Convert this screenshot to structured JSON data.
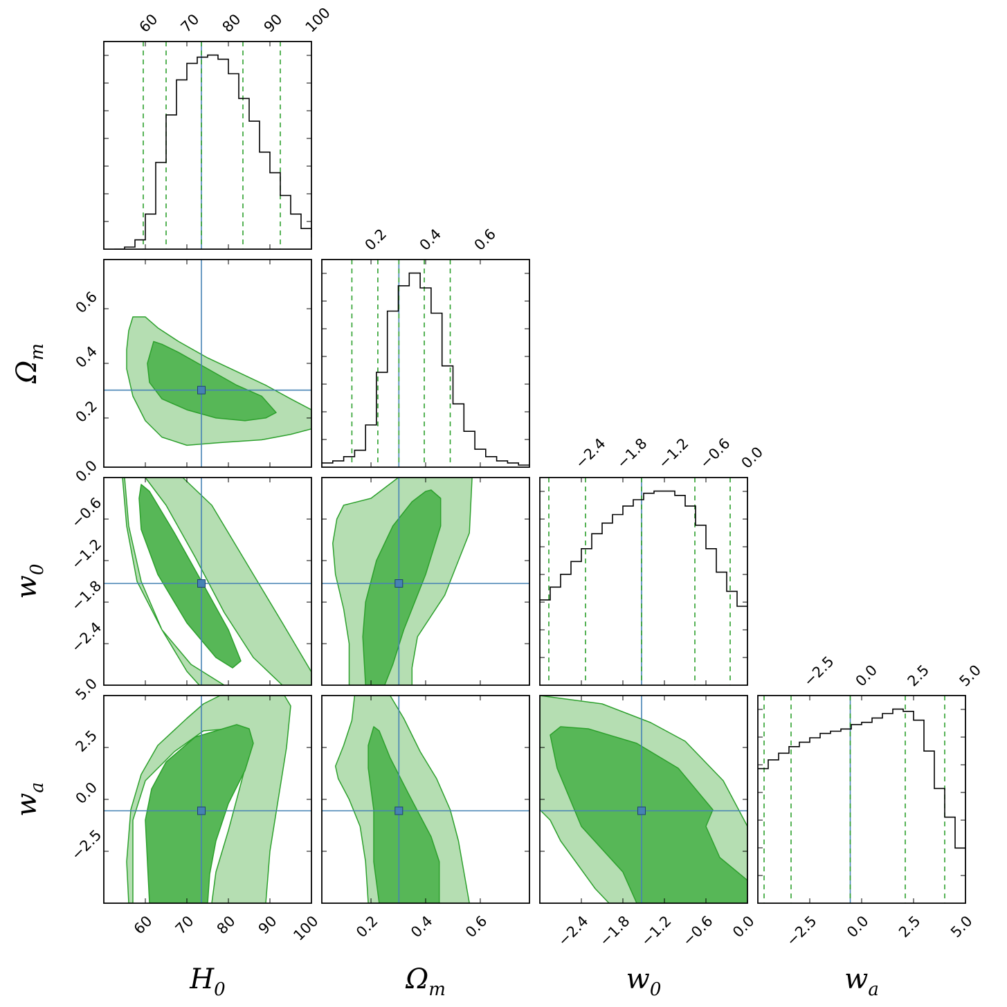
{
  "chart_data": {
    "type": "corner",
    "parameters": [
      {
        "key": "H0",
        "label_main": "H",
        "label_sub": "0",
        "range": [
          50,
          100
        ],
        "ticks": [
          60,
          70,
          80,
          90,
          100
        ],
        "tick_labels": [
          "60",
          "70",
          "80",
          "90",
          "100"
        ]
      },
      {
        "key": "Om",
        "label_main": "Ω",
        "label_sub": "m",
        "range": [
          0.02,
          0.78
        ],
        "ticks": [
          0.2,
          0.4,
          0.6
        ],
        "tick_labels": [
          "0.2",
          "0.4",
          "0.6"
        ]
      },
      {
        "key": "w0",
        "label_main": "w",
        "label_sub": "0",
        "range": [
          -3.0,
          0.0
        ],
        "ticks": [
          -2.4,
          -1.8,
          -1.2,
          -0.6,
          0.0
        ],
        "tick_labels": [
          "−2.4",
          "−1.8",
          "−1.2",
          "−0.6",
          "0.0"
        ]
      },
      {
        "key": "wa",
        "label_main": "w",
        "label_sub": "a",
        "range": [
          -5.0,
          5.0
        ],
        "ticks": [
          -2.5,
          0.0,
          2.5,
          5.0
        ],
        "tick_labels": [
          "−2.5",
          "0.0",
          "2.5",
          "5.0"
        ]
      }
    ],
    "truth": {
      "H0": 73.5,
      "Om": 0.302,
      "w0": -1.53,
      "wa": -0.55
    },
    "quantiles": {
      "H0": [
        59.5,
        65.0,
        73.5,
        83.5,
        92.5
      ],
      "Om": [
        0.13,
        0.225,
        0.302,
        0.395,
        0.49
      ],
      "w0": [
        -2.87,
        -2.34,
        -1.53,
        -0.76,
        -0.25
      ],
      "wa": [
        -4.7,
        -3.4,
        -0.55,
        2.1,
        4.0
      ]
    },
    "histograms": {
      "H0": {
        "edges_start": 52.5,
        "bin_width": 2.5,
        "values": [
          0.0,
          0.01,
          0.045,
          0.17,
          0.42,
          0.65,
          0.82,
          0.9,
          0.93,
          0.94,
          0.92,
          0.85,
          0.73,
          0.62,
          0.47,
          0.37,
          0.26,
          0.17,
          0.1,
          0.06,
          0.04,
          0.03
        ]
      },
      "Om": {
        "edges_start": 0.02,
        "bin_width": 0.04,
        "values": [
          0.02,
          0.03,
          0.05,
          0.08,
          0.2,
          0.45,
          0.74,
          0.86,
          0.92,
          0.85,
          0.73,
          0.48,
          0.3,
          0.17,
          0.085,
          0.05,
          0.03,
          0.02,
          0.01
        ]
      },
      "w0": {
        "edges_start": -3.0,
        "bin_width": 0.15,
        "values": [
          0.4,
          0.46,
          0.52,
          0.58,
          0.64,
          0.71,
          0.76,
          0.8,
          0.84,
          0.87,
          0.9,
          0.91,
          0.91,
          0.89,
          0.84,
          0.75,
          0.64,
          0.53,
          0.44,
          0.37
        ]
      },
      "wa": {
        "edges_start": -5.0,
        "bin_width": 0.5,
        "values": [
          0.61,
          0.65,
          0.68,
          0.71,
          0.73,
          0.75,
          0.77,
          0.78,
          0.79,
          0.81,
          0.82,
          0.84,
          0.86,
          0.88,
          0.87,
          0.83,
          0.69,
          0.52,
          0.39,
          0.25
        ]
      }
    },
    "contours": [
      {
        "x": "H0",
        "y": "Om",
        "outer": [
          [
            57,
            0.57
          ],
          [
            60,
            0.57
          ],
          [
            63,
            0.53
          ],
          [
            68,
            0.48
          ],
          [
            75,
            0.42
          ],
          [
            82,
            0.37
          ],
          [
            89,
            0.32
          ],
          [
            95,
            0.27
          ],
          [
            100,
            0.23
          ],
          [
            100,
            0.16
          ],
          [
            95,
            0.14
          ],
          [
            88,
            0.12
          ],
          [
            78,
            0.11
          ],
          [
            70,
            0.1
          ],
          [
            64,
            0.13
          ],
          [
            60,
            0.19
          ],
          [
            57,
            0.28
          ],
          [
            55.5,
            0.38
          ],
          [
            55.5,
            0.45
          ],
          [
            56,
            0.52
          ]
        ],
        "inner": [
          [
            62,
            0.48
          ],
          [
            64,
            0.47
          ],
          [
            68,
            0.44
          ],
          [
            75,
            0.38
          ],
          [
            82,
            0.32
          ],
          [
            88,
            0.28
          ],
          [
            91.5,
            0.22
          ],
          [
            89,
            0.2
          ],
          [
            84,
            0.19
          ],
          [
            77,
            0.2
          ],
          [
            70,
            0.23
          ],
          [
            64,
            0.27
          ],
          [
            61,
            0.33
          ],
          [
            60.5,
            0.4
          ]
        ]
      },
      {
        "x": "H0",
        "y": "w0",
        "outer": [
          [
            54.5,
            0.0
          ],
          [
            60,
            0.0
          ],
          [
            65,
            -0.4
          ],
          [
            72,
            -1.15
          ],
          [
            79,
            -1.95
          ],
          [
            86,
            -2.6
          ],
          [
            93,
            -3.0
          ],
          [
            100,
            -3.0
          ],
          [
            100,
            -2.81
          ],
          [
            93,
            -2.1
          ],
          [
            84,
            -1.2
          ],
          [
            76,
            -0.4
          ],
          [
            69,
            0.0
          ],
          [
            55,
            0.0
          ],
          [
            56,
            -0.7
          ],
          [
            59,
            -1.5
          ],
          [
            64,
            -2.2
          ],
          [
            70,
            -2.8
          ],
          [
            73,
            -3.0
          ],
          [
            79,
            -3.0
          ],
          [
            71,
            -2.7
          ],
          [
            64,
            -2.2
          ],
          [
            58,
            -1.5
          ],
          [
            55.5,
            -0.7
          ]
        ],
        "inner": [
          [
            59,
            -0.1
          ],
          [
            61,
            -0.2
          ],
          [
            67,
            -0.8
          ],
          [
            74,
            -1.55
          ],
          [
            80,
            -2.2
          ],
          [
            83,
            -2.65
          ],
          [
            81,
            -2.75
          ],
          [
            77,
            -2.6
          ],
          [
            70,
            -2.1
          ],
          [
            63,
            -1.4
          ],
          [
            59,
            -0.75
          ],
          [
            58.5,
            -0.3
          ]
        ]
      },
      {
        "x": "Om",
        "y": "w0",
        "outer": [
          [
            0.1,
            -0.4
          ],
          [
            0.2,
            -0.3
          ],
          [
            0.25,
            -0.15
          ],
          [
            0.3,
            0.0
          ],
          [
            0.57,
            0.0
          ],
          [
            0.56,
            -0.8
          ],
          [
            0.47,
            -1.7
          ],
          [
            0.37,
            -2.3
          ],
          [
            0.35,
            -2.75
          ],
          [
            0.35,
            -3.0
          ],
          [
            0.12,
            -3.0
          ],
          [
            0.12,
            -2.4
          ],
          [
            0.1,
            -1.9
          ],
          [
            0.07,
            -1.4
          ],
          [
            0.06,
            -0.95
          ],
          [
            0.075,
            -0.6
          ]
        ],
        "inner": [
          [
            0.42,
            -0.18
          ],
          [
            0.455,
            -0.3
          ],
          [
            0.455,
            -0.7
          ],
          [
            0.4,
            -1.4
          ],
          [
            0.32,
            -2.2
          ],
          [
            0.28,
            -2.7
          ],
          [
            0.25,
            -3.0
          ],
          [
            0.18,
            -3.0
          ],
          [
            0.17,
            -2.3
          ],
          [
            0.18,
            -1.8
          ],
          [
            0.22,
            -1.2
          ],
          [
            0.28,
            -0.7
          ],
          [
            0.35,
            -0.35
          ],
          [
            0.4,
            -0.2
          ]
        ]
      },
      {
        "x": "H0",
        "y": "wa",
        "outer": [
          [
            78,
            5.0
          ],
          [
            93.5,
            5.0
          ],
          [
            95,
            4.5
          ],
          [
            94,
            2.5
          ],
          [
            92,
            0.0
          ],
          [
            90,
            -2.5
          ],
          [
            89,
            -5.0
          ],
          [
            76,
            -5.0
          ],
          [
            77,
            -3.5
          ],
          [
            80,
            -1.5
          ],
          [
            84,
            1.5
          ],
          [
            80,
            3.4
          ],
          [
            74,
            3.3
          ],
          [
            67,
            2.3
          ],
          [
            60,
            0.9
          ],
          [
            57,
            -1.0
          ],
          [
            57,
            -5.0
          ],
          [
            56,
            -5.0
          ],
          [
            55.5,
            -3.0
          ],
          [
            56.5,
            -0.5
          ],
          [
            59,
            1.2
          ],
          [
            63,
            2.6
          ],
          [
            70,
            3.9
          ],
          [
            74,
            4.6
          ]
        ],
        "inner": [
          [
            60,
            -1.0
          ],
          [
            61.5,
            0.5
          ],
          [
            65,
            1.8
          ],
          [
            72,
            3.0
          ],
          [
            82,
            3.6
          ],
          [
            85,
            3.4
          ],
          [
            86,
            2.7
          ],
          [
            84,
            1.4
          ],
          [
            80,
            -0.2
          ],
          [
            77,
            -2.0
          ],
          [
            75.5,
            -3.6
          ],
          [
            75,
            -5.0
          ],
          [
            61,
            -5.0
          ],
          [
            60.5,
            -3.0
          ]
        ]
      },
      {
        "x": "Om",
        "y": "wa",
        "outer": [
          [
            0.14,
            5.0
          ],
          [
            0.27,
            5.0
          ],
          [
            0.32,
            3.9
          ],
          [
            0.38,
            2.3
          ],
          [
            0.44,
            1.0
          ],
          [
            0.49,
            -0.5
          ],
          [
            0.52,
            -2.0
          ],
          [
            0.54,
            -3.5
          ],
          [
            0.56,
            -5.0
          ],
          [
            0.19,
            -5.0
          ],
          [
            0.18,
            -3.0
          ],
          [
            0.16,
            -1.3
          ],
          [
            0.12,
            0.0
          ],
          [
            0.08,
            1.0
          ],
          [
            0.07,
            1.6
          ],
          [
            0.1,
            2.6
          ],
          [
            0.13,
            3.8
          ]
        ],
        "inner": [
          [
            0.21,
            3.5
          ],
          [
            0.23,
            3.3
          ],
          [
            0.27,
            2.0
          ],
          [
            0.34,
            0.2
          ],
          [
            0.42,
            -1.8
          ],
          [
            0.45,
            -3.0
          ],
          [
            0.45,
            -5.0
          ],
          [
            0.23,
            -5.0
          ],
          [
            0.21,
            -3.0
          ],
          [
            0.21,
            -0.5
          ],
          [
            0.19,
            1.5
          ],
          [
            0.19,
            2.6
          ]
        ]
      },
      {
        "x": "w0",
        "y": "wa",
        "outer": [
          [
            -3.0,
            5.0
          ],
          [
            -2.1,
            4.6
          ],
          [
            -1.4,
            3.7
          ],
          [
            -0.9,
            2.8
          ],
          [
            -0.35,
            0.9
          ],
          [
            0.0,
            -1.3
          ],
          [
            0.0,
            -5.0
          ],
          [
            -2.0,
            -5.0
          ],
          [
            -2.2,
            -4.3
          ],
          [
            -2.7,
            -2.0
          ],
          [
            -2.85,
            -1.0
          ],
          [
            -3.0,
            -0.5
          ]
        ],
        "inner": [
          [
            -2.7,
            3.5
          ],
          [
            -2.3,
            3.4
          ],
          [
            -1.6,
            2.7
          ],
          [
            -1.0,
            1.5
          ],
          [
            -0.5,
            -0.5
          ],
          [
            -0.6,
            -1.3
          ],
          [
            -0.4,
            -2.8
          ],
          [
            0.0,
            -3.9
          ],
          [
            0.0,
            -5.0
          ],
          [
            -1.6,
            -5.0
          ],
          [
            -1.8,
            -3.5
          ],
          [
            -2.4,
            -1.3
          ],
          [
            -2.75,
            1.5
          ],
          [
            -2.85,
            3.1
          ]
        ]
      }
    ]
  }
}
